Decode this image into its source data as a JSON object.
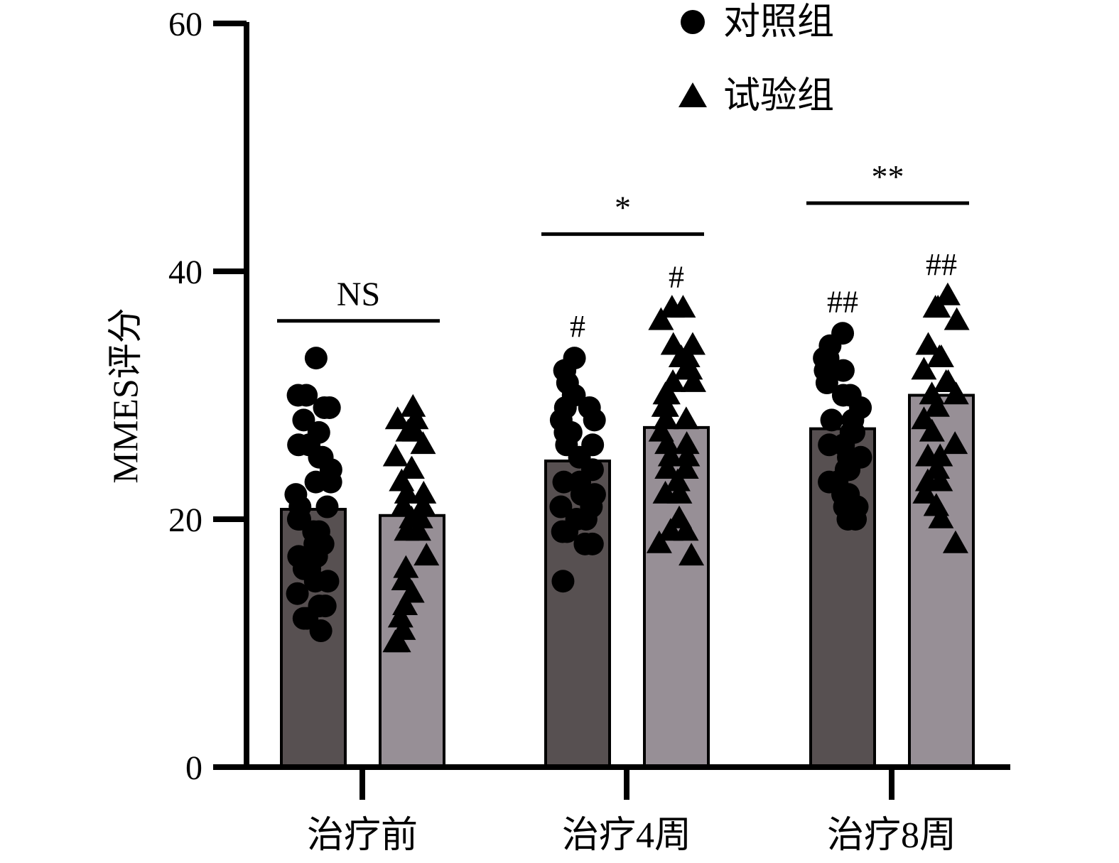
{
  "chart_data": {
    "type": "bar",
    "title": "",
    "xlabel": "",
    "ylabel": "MMES评分",
    "ylim": [
      0,
      60
    ],
    "yticks": [
      0,
      20,
      40,
      60
    ],
    "grid": false,
    "legend_position": "top-right",
    "categories": [
      "治疗前",
      "治疗4周",
      "治疗8周"
    ],
    "series": [
      {
        "name": "对照组",
        "marker": "circle",
        "color": "#575051",
        "values": [
          20.8,
          24.7,
          27.3
        ],
        "points": [
          [
            33,
            30,
            30,
            29,
            29,
            28,
            27,
            26,
            26,
            25,
            25,
            24,
            23,
            23,
            22,
            21,
            21,
            20,
            20,
            19,
            19,
            18,
            18,
            17,
            17,
            16,
            16,
            15,
            15,
            14,
            13,
            13,
            12,
            12,
            11
          ],
          [
            33,
            32,
            32,
            31,
            30,
            30,
            29,
            29,
            28,
            28,
            27,
            27,
            26,
            26,
            25,
            24,
            23,
            23,
            22,
            22,
            21,
            21,
            20,
            20,
            19,
            19,
            18,
            18,
            15
          ],
          [
            35,
            34,
            33,
            33,
            32,
            32,
            31,
            30,
            30,
            29,
            28,
            28,
            27,
            27,
            26,
            26,
            25,
            25,
            24,
            24,
            23,
            23,
            22,
            22,
            21,
            21,
            20,
            20
          ]
        ]
      },
      {
        "name": "试验组",
        "marker": "triangle",
        "color": "#978f96",
        "values": [
          20.3,
          27.4,
          30.0
        ],
        "points": [
          [
            29,
            28,
            28,
            27,
            27,
            26,
            25,
            24,
            24,
            23,
            22,
            22,
            21,
            21,
            20,
            20,
            19,
            19,
            17,
            16,
            15,
            15,
            14,
            13,
            12,
            11,
            10,
            10
          ],
          [
            37,
            37,
            36,
            34,
            34,
            33,
            33,
            32,
            32,
            31,
            31,
            30,
            30,
            29,
            29,
            28,
            28,
            27,
            26,
            26,
            25,
            25,
            24,
            24,
            23,
            22,
            22,
            20,
            19,
            19,
            18,
            17
          ],
          [
            38,
            37,
            37,
            36,
            34,
            33,
            33,
            32,
            31,
            31,
            30,
            30,
            29,
            28,
            27,
            26,
            25,
            25,
            24,
            23,
            23,
            22,
            21,
            21,
            20,
            18
          ]
        ]
      }
    ],
    "bar_annotations": [
      [
        "",
        ""
      ],
      [
        "#",
        "#"
      ],
      [
        "##",
        "##"
      ]
    ],
    "significance": [
      {
        "label": "NS",
        "level": 36
      },
      {
        "label": "*",
        "level": 43
      },
      {
        "label": "**",
        "level": 45.5
      }
    ]
  }
}
